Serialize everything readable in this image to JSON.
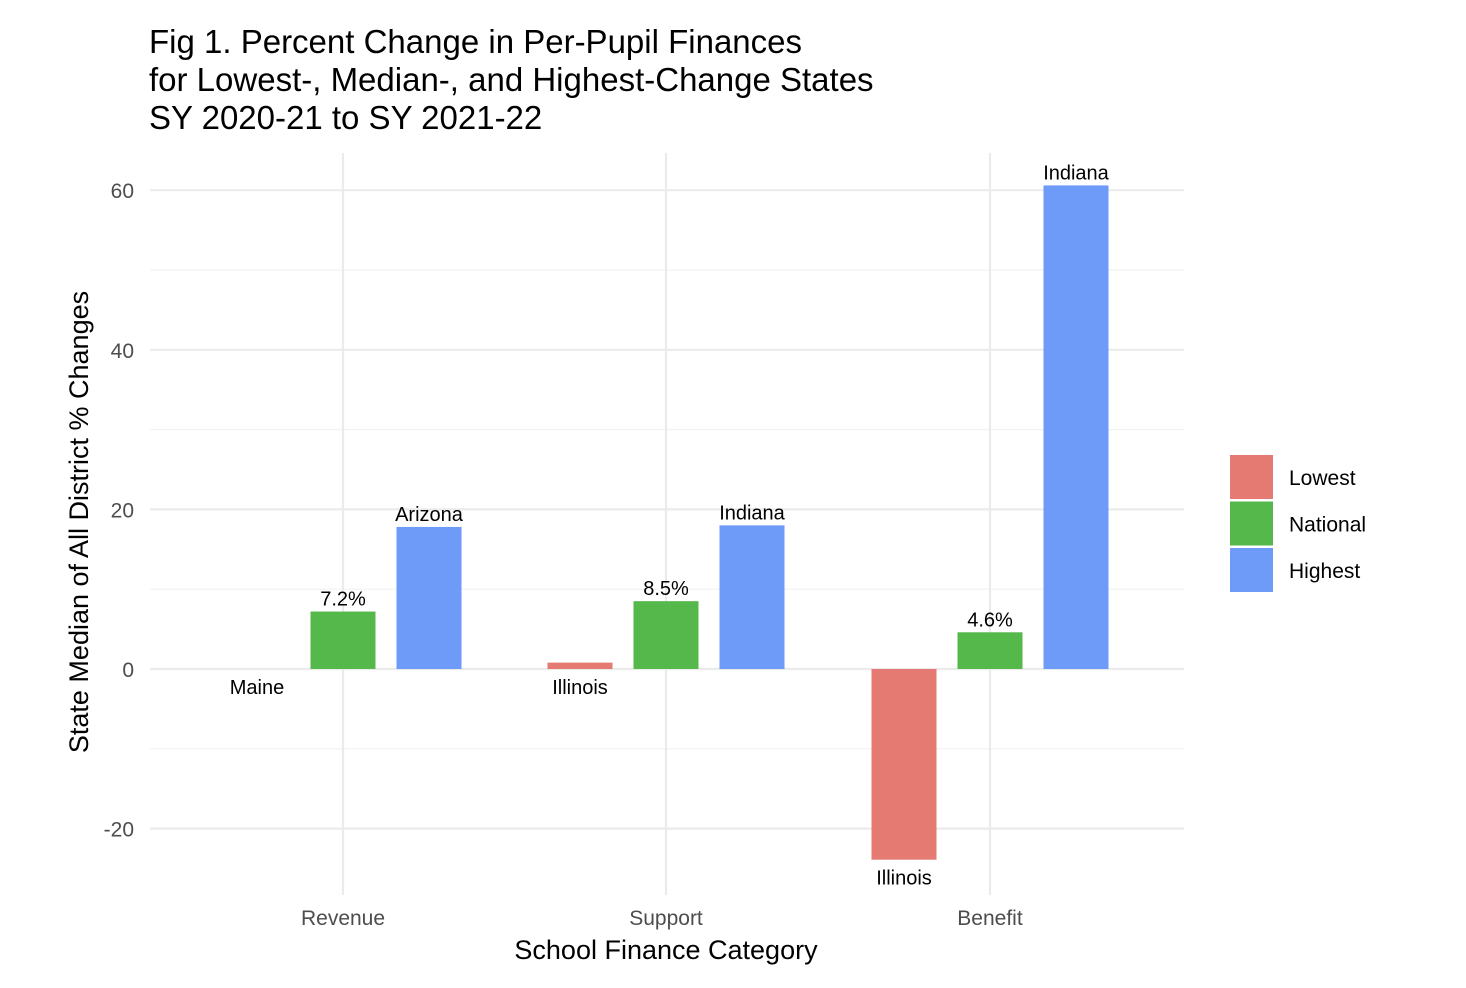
{
  "chart_data": {
    "type": "bar",
    "title_lines": [
      "Fig 1. Percent Change in Per-Pupil Finances",
      "for Lowest-, Median-, and Highest-Change States",
      "SY 2020-21 to SY 2021-22"
    ],
    "xlabel": "School Finance Category",
    "ylabel": "State Median of All District % Changes",
    "categories": [
      "Revenue",
      "Support",
      "Benefit"
    ],
    "ylim": [
      -30,
      65
    ],
    "yticks": [
      -20,
      0,
      20,
      40,
      60
    ],
    "grid": true,
    "legend_position": "right",
    "series": [
      {
        "name": "Lowest",
        "color": "#E57A72",
        "values": [
          0.0,
          0.8,
          -23.9
        ],
        "labels": [
          "Maine",
          "Illinois",
          "Illinois"
        ]
      },
      {
        "name": "National",
        "color": "#54B84A",
        "values": [
          7.2,
          8.5,
          4.6
        ],
        "labels": [
          "7.2%",
          "8.5%",
          "4.6%"
        ]
      },
      {
        "name": "Highest",
        "color": "#6E9AF8",
        "values": [
          17.8,
          18.0,
          60.6
        ],
        "labels": [
          "Arizona",
          "Indiana",
          "Indiana"
        ]
      }
    ]
  }
}
